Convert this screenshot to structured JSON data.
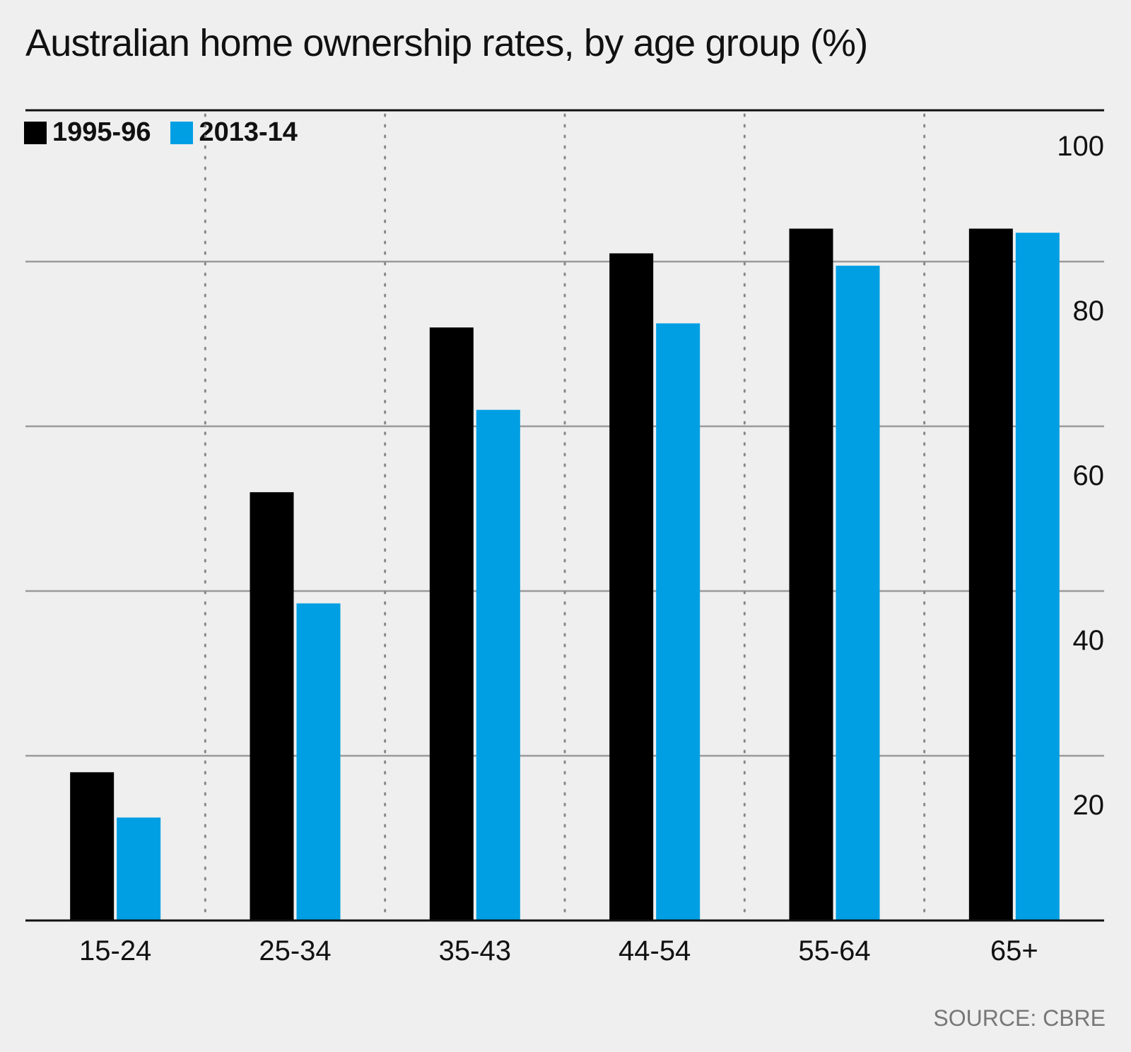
{
  "chart_data": {
    "type": "bar",
    "title": "Australian home ownership rates, by age group (%)",
    "categories": [
      "15-24",
      "25-34",
      "35-43",
      "44-54",
      "55-64",
      "65+"
    ],
    "series": [
      {
        "name": "1995-96",
        "color": "#000000",
        "values": [
          18,
          52,
          72,
          81,
          84,
          84
        ]
      },
      {
        "name": "2013-14",
        "color": "#009fe3",
        "values": [
          12.5,
          38.5,
          62,
          72.5,
          79.5,
          83.5
        ]
      }
    ],
    "y_ticks": [
      "20",
      "40",
      "60",
      "80",
      "100"
    ],
    "ylim": [
      0,
      100
    ],
    "y_axis_side": "right",
    "grid": true,
    "legend_position": "top-left",
    "source": "SOURCE: CBRE"
  }
}
